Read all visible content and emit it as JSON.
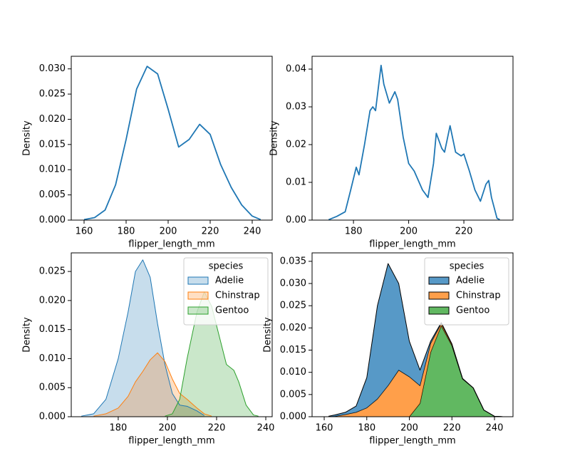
{
  "chart_data": [
    {
      "type": "line",
      "xlabel": "flipper_length_mm",
      "ylabel": "Density",
      "color": "#1f77b4",
      "x": [
        160,
        165,
        170,
        175,
        180,
        185,
        190,
        195,
        200,
        205,
        210,
        215,
        220,
        225,
        230,
        235,
        240,
        244
      ],
      "values": [
        0.0001,
        0.0005,
        0.002,
        0.007,
        0.016,
        0.026,
        0.0305,
        0.029,
        0.022,
        0.0145,
        0.016,
        0.019,
        0.017,
        0.011,
        0.0065,
        0.003,
        0.0008,
        0.0001
      ],
      "xlim": [
        153.9,
        249.5
      ],
      "ylim": [
        0,
        0.0325
      ],
      "xticks": [
        160,
        180,
        200,
        220,
        240
      ],
      "yticks": [
        {
          "value": 0,
          "label": "0.000"
        },
        {
          "value": 0.005,
          "label": "0.005"
        },
        {
          "value": 0.01,
          "label": "0.010"
        },
        {
          "value": 0.015,
          "label": "0.015"
        },
        {
          "value": 0.02,
          "label": "0.020"
        },
        {
          "value": 0.025,
          "label": "0.025"
        },
        {
          "value": 0.03,
          "label": "0.030"
        }
      ]
    },
    {
      "type": "line",
      "xlabel": "flipper_length_mm",
      "ylabel": "Density",
      "color": "#1f77b4",
      "x": [
        171,
        174,
        177,
        179,
        181,
        182,
        184,
        186,
        187,
        188,
        190,
        191,
        193,
        195,
        196,
        198,
        200,
        202,
        205,
        207,
        209,
        210,
        212,
        213,
        215,
        217,
        219,
        220,
        222,
        224,
        226,
        228,
        229,
        230,
        232,
        233
      ],
      "values": [
        0.0001,
        0.001,
        0.0022,
        0.008,
        0.014,
        0.012,
        0.02,
        0.029,
        0.03,
        0.029,
        0.041,
        0.036,
        0.031,
        0.034,
        0.032,
        0.022,
        0.015,
        0.013,
        0.008,
        0.006,
        0.015,
        0.023,
        0.019,
        0.018,
        0.025,
        0.018,
        0.017,
        0.0175,
        0.013,
        0.008,
        0.005,
        0.0095,
        0.0105,
        0.006,
        0.0005,
        0.0001
      ],
      "xlim": [
        165.0,
        237.8
      ],
      "ylim": [
        0,
        0.0434
      ],
      "xticks": [
        180,
        200,
        220
      ],
      "yticks": [
        {
          "value": 0,
          "label": "0.00"
        },
        {
          "value": 0.01,
          "label": "0.01"
        },
        {
          "value": 0.02,
          "label": "0.02"
        },
        {
          "value": 0.03,
          "label": "0.03"
        },
        {
          "value": 0.04,
          "label": "0.04"
        }
      ]
    },
    {
      "type": "area",
      "xlabel": "flipper_length_mm",
      "ylabel": "Density",
      "legend_title": "species",
      "legend": "upper right",
      "x": [
        165,
        170,
        175,
        180,
        184,
        187,
        190,
        193,
        196,
        199,
        202,
        205,
        208,
        212,
        215,
        218,
        221,
        224,
        227,
        229,
        232,
        235,
        237
      ],
      "series": [
        {
          "name": "Adelie",
          "color": "#1f77b4",
          "values": [
            0.0001,
            0.0005,
            0.003,
            0.01,
            0.018,
            0.025,
            0.027,
            0.024,
            0.016,
            0.009,
            0.004,
            0.002,
            0.0018,
            0.001,
            0.0002,
            null,
            null,
            null,
            null,
            null,
            null,
            null,
            null
          ]
        },
        {
          "name": "Chinstrap",
          "color": "#ff7f0e",
          "values": [
            null,
            0.0001,
            0.0005,
            0.0015,
            0.0035,
            0.006,
            0.0078,
            0.0098,
            0.011,
            0.0095,
            0.0065,
            0.004,
            0.003,
            0.0015,
            0.0005,
            0.0001,
            null,
            null,
            null,
            null,
            null,
            null,
            null
          ]
        },
        {
          "name": "Gentoo",
          "color": "#2ca02c",
          "values": [
            null,
            null,
            null,
            null,
            null,
            null,
            null,
            null,
            null,
            0.0001,
            0.0005,
            0.003,
            0.01,
            0.018,
            0.0215,
            0.019,
            0.014,
            0.009,
            0.008,
            0.006,
            0.002,
            0.0003,
            0.0001
          ]
        }
      ],
      "xlim": [
        160.9,
        242.6
      ],
      "ylim": [
        0,
        0.0282
      ],
      "xticks": [
        180,
        200,
        220,
        240
      ],
      "yticks": [
        {
          "value": 0,
          "label": "0.000"
        },
        {
          "value": 0.005,
          "label": "0.005"
        },
        {
          "value": 0.01,
          "label": "0.010"
        },
        {
          "value": 0.015,
          "label": "0.015"
        },
        {
          "value": 0.02,
          "label": "0.020"
        },
        {
          "value": 0.025,
          "label": "0.025"
        }
      ]
    },
    {
      "type": "stacked_area",
      "xlabel": "flipper_length_mm",
      "ylabel": "Density",
      "legend_title": "species",
      "legend": "upper right",
      "edgecolor": "#000000",
      "x": [
        162,
        165,
        170,
        175,
        180,
        185,
        190,
        195,
        200,
        205,
        210,
        215,
        220,
        225,
        230,
        235,
        240,
        244
      ],
      "series": [
        {
          "name": "Adelie",
          "color": "#1f77b4",
          "values": [
            0.0001,
            0.0003,
            0.0005,
            0.0014,
            0.0068,
            0.021,
            0.0275,
            0.0195,
            0.008,
            0.0035,
            0.0005,
            0.0002,
            0.0001,
            0,
            0,
            0,
            0,
            0
          ]
        },
        {
          "name": "Chinstrap",
          "color": "#ff7f0e",
          "values": [
            0,
            0.0001,
            0.0005,
            0.001,
            0.002,
            0.004,
            0.007,
            0.0105,
            0.009,
            0.004,
            0.002,
            0.0005,
            0.0003,
            0.0001,
            0,
            0,
            0,
            0
          ]
        },
        {
          "name": "Gentoo",
          "color": "#2ca02c",
          "values": [
            0,
            0,
            0,
            0,
            0,
            0,
            0,
            0,
            0,
            0.003,
            0.0145,
            0.0205,
            0.016,
            0.0085,
            0.0065,
            0.0015,
            0.0001,
            0
          ]
        }
      ],
      "xlim": [
        154.3,
        248.7
      ],
      "ylim": [
        0,
        0.0369
      ],
      "xticks": [
        160,
        180,
        200,
        220,
        240
      ],
      "yticks": [
        {
          "value": 0,
          "label": "0.000"
        },
        {
          "value": 0.005,
          "label": "0.005"
        },
        {
          "value": 0.01,
          "label": "0.010"
        },
        {
          "value": 0.015,
          "label": "0.015"
        },
        {
          "value": 0.02,
          "label": "0.020"
        },
        {
          "value": 0.025,
          "label": "0.025"
        },
        {
          "value": 0.03,
          "label": "0.030"
        },
        {
          "value": 0.035,
          "label": "0.035"
        }
      ]
    }
  ]
}
